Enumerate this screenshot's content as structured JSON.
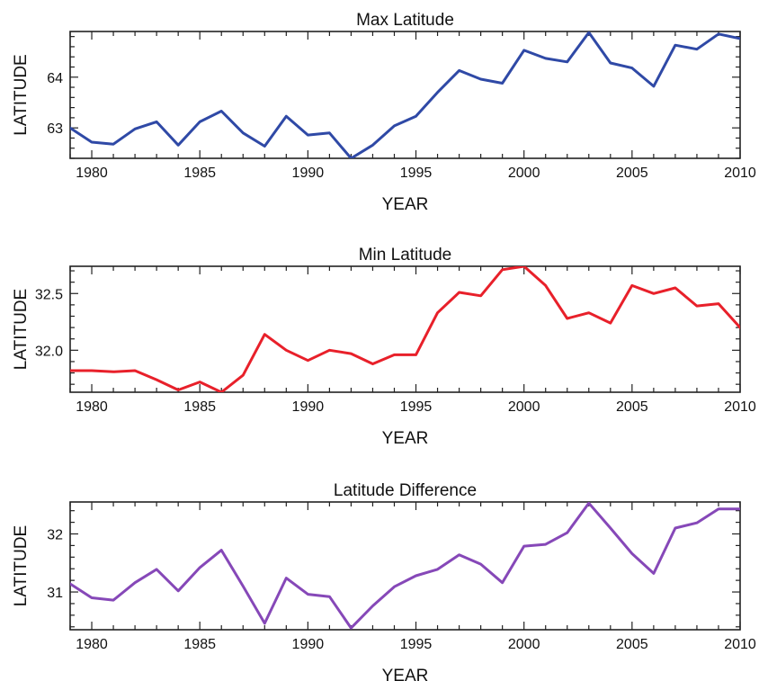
{
  "chart_data": [
    {
      "type": "line",
      "title": "Max Latitude",
      "xlabel": "YEAR",
      "ylabel": "LATITUDE",
      "xlim": [
        1979,
        2010
      ],
      "ylim": [
        62.4,
        64.9
      ],
      "xticks": [
        1980,
        1985,
        1990,
        1995,
        2000,
        2005,
        2010
      ],
      "yticks": [
        63,
        64
      ],
      "ytick_labels": [
        "63",
        "64"
      ],
      "grid": false,
      "color": "#2f49a6",
      "series": [
        {
          "x": [
            1979,
            1980,
            1981,
            1982,
            1983,
            1984,
            1985,
            1986,
            1987,
            1988,
            1989,
            1990,
            1991,
            1992,
            1993,
            1994,
            1995,
            1996,
            1997,
            1998,
            1999,
            2000,
            2001,
            2002,
            2003,
            2004,
            2005,
            2006,
            2007,
            2008,
            2009,
            2010
          ],
          "values": [
            63.0,
            62.72,
            62.68,
            62.98,
            63.12,
            62.66,
            63.12,
            63.33,
            62.9,
            62.64,
            63.23,
            62.86,
            62.9,
            62.4,
            62.66,
            63.04,
            63.23,
            63.7,
            64.13,
            63.96,
            63.88,
            64.53,
            64.37,
            64.3,
            64.88,
            64.28,
            64.18,
            63.82,
            64.63,
            64.55,
            64.85,
            64.76
          ]
        }
      ]
    },
    {
      "type": "line",
      "title": "Min Latitude",
      "xlabel": "YEAR",
      "ylabel": "LATITUDE",
      "xlim": [
        1979,
        2010
      ],
      "ylim": [
        31.63,
        32.74
      ],
      "xticks": [
        1980,
        1985,
        1990,
        1995,
        2000,
        2005,
        2010
      ],
      "yticks": [
        32.0,
        32.5
      ],
      "ytick_labels": [
        "32.0",
        "32.5"
      ],
      "grid": false,
      "color": "#e8202a",
      "series": [
        {
          "x": [
            1979,
            1980,
            1981,
            1982,
            1983,
            1984,
            1985,
            1986,
            1987,
            1988,
            1989,
            1990,
            1991,
            1992,
            1993,
            1994,
            1995,
            1996,
            1997,
            1998,
            1999,
            2000,
            2001,
            2002,
            2003,
            2004,
            2005,
            2006,
            2007,
            2008,
            2009,
            2010
          ],
          "values": [
            31.82,
            31.82,
            31.81,
            31.82,
            31.74,
            31.65,
            31.72,
            31.63,
            31.78,
            32.14,
            32.0,
            31.91,
            32.0,
            31.97,
            31.88,
            31.96,
            31.96,
            32.33,
            32.51,
            32.48,
            32.71,
            32.74,
            32.57,
            32.28,
            32.33,
            32.24,
            32.57,
            32.5,
            32.55,
            32.39,
            32.41,
            32.2
          ]
        }
      ]
    },
    {
      "type": "line",
      "title": "Latitude Difference",
      "xlabel": "YEAR",
      "ylabel": "LATITUDE",
      "xlim": [
        1979,
        2010
      ],
      "ylim": [
        30.35,
        32.55
      ],
      "xticks": [
        1980,
        1985,
        1990,
        1995,
        2000,
        2005,
        2010
      ],
      "yticks": [
        31,
        32
      ],
      "ytick_labels": [
        "31",
        "32"
      ],
      "grid": false,
      "color": "#8648b8",
      "series": [
        {
          "x": [
            1979,
            1980,
            1981,
            1982,
            1983,
            1984,
            1985,
            1986,
            1987,
            1988,
            1989,
            1990,
            1991,
            1992,
            1993,
            1994,
            1995,
            1996,
            1997,
            1998,
            1999,
            2000,
            2001,
            2002,
            2003,
            2004,
            2005,
            2006,
            2007,
            2008,
            2009,
            2010
          ],
          "values": [
            31.14,
            30.9,
            30.86,
            31.16,
            31.39,
            31.02,
            31.42,
            31.72,
            31.1,
            30.46,
            31.24,
            30.96,
            30.92,
            30.38,
            30.76,
            31.09,
            31.28,
            31.39,
            31.64,
            31.48,
            31.16,
            31.79,
            31.82,
            32.02,
            32.53,
            32.1,
            31.66,
            31.32,
            32.1,
            32.19,
            32.43,
            32.43
          ]
        }
      ]
    }
  ]
}
